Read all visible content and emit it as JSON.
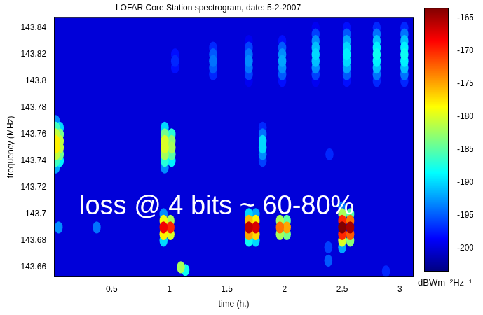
{
  "chart_data": {
    "type": "heatmap",
    "title": "LOFAR Core Station spectrogram, date: 5-2-2007",
    "x_label": "time (h.)",
    "y_label": "frequency (MHz)",
    "xlim": [
      0,
      3.12
    ],
    "xticks": [
      0.5,
      1,
      1.5,
      2,
      2.5,
      3
    ],
    "ylim": [
      143.653,
      143.848
    ],
    "yticks": [
      143.66,
      143.68,
      143.7,
      143.72,
      143.74,
      143.76,
      143.78,
      143.8,
      143.82,
      143.84
    ],
    "grid": false,
    "annotations": [
      "loss @ 4 bits ~ 60-80%"
    ],
    "background": -200,
    "cells": [
      [
        1.05,
        143.81,
        -198
      ],
      [
        1.05,
        143.815,
        -197
      ],
      [
        1.05,
        143.82,
        -198
      ],
      [
        1.38,
        143.805,
        -197
      ],
      [
        1.38,
        143.81,
        -195
      ],
      [
        1.38,
        143.815,
        -194
      ],
      [
        1.38,
        143.82,
        -195
      ],
      [
        1.38,
        143.825,
        -197
      ],
      [
        1.69,
        143.8,
        -199
      ],
      [
        1.69,
        143.805,
        -196
      ],
      [
        1.69,
        143.81,
        -194
      ],
      [
        1.69,
        143.815,
        -193
      ],
      [
        1.69,
        143.82,
        -194
      ],
      [
        1.69,
        143.825,
        -196
      ],
      [
        1.69,
        143.83,
        -199
      ],
      [
        1.98,
        143.8,
        -198
      ],
      [
        1.98,
        143.805,
        -195
      ],
      [
        1.98,
        143.81,
        -193
      ],
      [
        1.98,
        143.815,
        -192
      ],
      [
        1.98,
        143.82,
        -193
      ],
      [
        1.98,
        143.825,
        -195
      ],
      [
        1.98,
        143.83,
        -198
      ],
      [
        2.27,
        143.8,
        -199
      ],
      [
        2.27,
        143.805,
        -196
      ],
      [
        2.27,
        143.81,
        -193
      ],
      [
        2.27,
        143.815,
        -191
      ],
      [
        2.27,
        143.82,
        -190
      ],
      [
        2.27,
        143.825,
        -191
      ],
      [
        2.27,
        143.83,
        -193
      ],
      [
        2.27,
        143.835,
        -196
      ],
      [
        2.27,
        143.84,
        -199
      ],
      [
        2.54,
        143.8,
        -198
      ],
      [
        2.54,
        143.805,
        -195
      ],
      [
        2.54,
        143.81,
        -192
      ],
      [
        2.54,
        143.815,
        -190
      ],
      [
        2.54,
        143.82,
        -189
      ],
      [
        2.54,
        143.825,
        -190
      ],
      [
        2.54,
        143.83,
        -192
      ],
      [
        2.54,
        143.835,
        -195
      ],
      [
        2.54,
        143.84,
        -198
      ],
      [
        2.8,
        143.8,
        -197
      ],
      [
        2.8,
        143.805,
        -194
      ],
      [
        2.8,
        143.81,
        -191
      ],
      [
        2.8,
        143.815,
        -189
      ],
      [
        2.8,
        143.82,
        -188
      ],
      [
        2.8,
        143.825,
        -189
      ],
      [
        2.8,
        143.83,
        -191
      ],
      [
        2.8,
        143.835,
        -194
      ],
      [
        2.8,
        143.84,
        -197
      ],
      [
        3.04,
        143.8,
        -197
      ],
      [
        3.04,
        143.805,
        -194
      ],
      [
        3.04,
        143.81,
        -191
      ],
      [
        3.04,
        143.815,
        -189
      ],
      [
        3.04,
        143.82,
        -188
      ],
      [
        3.04,
        143.825,
        -189
      ],
      [
        3.04,
        143.83,
        -191
      ],
      [
        3.04,
        143.835,
        -194
      ],
      [
        3.04,
        143.84,
        -197
      ],
      [
        0.015,
        143.735,
        -192
      ],
      [
        0.015,
        143.74,
        -186
      ],
      [
        0.015,
        143.745,
        -181
      ],
      [
        0.015,
        143.75,
        -178
      ],
      [
        0.015,
        143.755,
        -178
      ],
      [
        0.015,
        143.76,
        -181
      ],
      [
        0.015,
        143.765,
        -186
      ],
      [
        0.015,
        143.77,
        -193
      ],
      [
        0.05,
        143.74,
        -189
      ],
      [
        0.05,
        143.745,
        -184
      ],
      [
        0.05,
        143.75,
        -181
      ],
      [
        0.05,
        143.755,
        -181
      ],
      [
        0.05,
        143.76,
        -184
      ],
      [
        0.05,
        143.765,
        -190
      ],
      [
        0.96,
        143.735,
        -193
      ],
      [
        0.96,
        143.74,
        -187
      ],
      [
        0.96,
        143.745,
        -182
      ],
      [
        0.96,
        143.75,
        -180
      ],
      [
        0.96,
        143.755,
        -180
      ],
      [
        0.96,
        143.76,
        -184
      ],
      [
        0.96,
        143.765,
        -190
      ],
      [
        1.02,
        143.74,
        -189
      ],
      [
        1.02,
        143.745,
        -185
      ],
      [
        1.02,
        143.75,
        -182
      ],
      [
        1.02,
        143.755,
        -183
      ],
      [
        1.02,
        143.76,
        -187
      ],
      [
        1.81,
        143.74,
        -196
      ],
      [
        1.81,
        143.745,
        -193
      ],
      [
        1.81,
        143.75,
        -190
      ],
      [
        1.81,
        143.755,
        -190
      ],
      [
        1.81,
        143.76,
        -194
      ],
      [
        1.81,
        143.765,
        -197
      ],
      [
        2.39,
        143.745,
        -197
      ],
      [
        0.04,
        143.69,
        -193
      ],
      [
        0.37,
        143.69,
        -194
      ],
      [
        0.95,
        143.68,
        -190
      ],
      [
        0.95,
        143.685,
        -178
      ],
      [
        0.95,
        143.69,
        -168
      ],
      [
        0.95,
        143.695,
        -179
      ],
      [
        0.95,
        143.7,
        -193
      ],
      [
        1.01,
        143.685,
        -180
      ],
      [
        1.01,
        143.69,
        -170
      ],
      [
        1.01,
        143.695,
        -182
      ],
      [
        1.69,
        143.68,
        -188
      ],
      [
        1.69,
        143.685,
        -175
      ],
      [
        1.69,
        143.69,
        -166
      ],
      [
        1.69,
        143.695,
        -176
      ],
      [
        1.69,
        143.7,
        -190
      ],
      [
        1.75,
        143.68,
        -190
      ],
      [
        1.75,
        143.685,
        -177
      ],
      [
        1.75,
        143.69,
        -167
      ],
      [
        1.75,
        143.695,
        -178
      ],
      [
        1.75,
        143.7,
        -192
      ],
      [
        1.96,
        143.685,
        -182
      ],
      [
        1.96,
        143.69,
        -173
      ],
      [
        1.96,
        143.695,
        -182
      ],
      [
        2.02,
        143.685,
        -184
      ],
      [
        2.02,
        143.69,
        -175
      ],
      [
        2.02,
        143.695,
        -185
      ],
      [
        2.5,
        143.675,
        -192
      ],
      [
        2.5,
        143.68,
        -180
      ],
      [
        2.5,
        143.685,
        -170
      ],
      [
        2.5,
        143.69,
        -163
      ],
      [
        2.5,
        143.695,
        -170
      ],
      [
        2.5,
        143.7,
        -182
      ],
      [
        2.5,
        143.705,
        -194
      ],
      [
        2.57,
        143.68,
        -183
      ],
      [
        2.57,
        143.685,
        -172
      ],
      [
        2.57,
        143.69,
        -165
      ],
      [
        2.57,
        143.695,
        -173
      ],
      [
        2.57,
        143.7,
        -185
      ],
      [
        1.1,
        143.66,
        -182
      ],
      [
        1.14,
        143.658,
        -188
      ],
      [
        2.38,
        143.665,
        -195
      ],
      [
        2.38,
        143.675,
        -196
      ],
      [
        2.88,
        143.657,
        -197
      ]
    ],
    "colorbar": {
      "label": "dBWm⁻²Hz⁻¹",
      "range": [
        -203.5,
        -163.5
      ],
      "ticks": [
        -200,
        -195,
        -190,
        -185,
        -180,
        -175,
        -170,
        -165
      ]
    }
  }
}
